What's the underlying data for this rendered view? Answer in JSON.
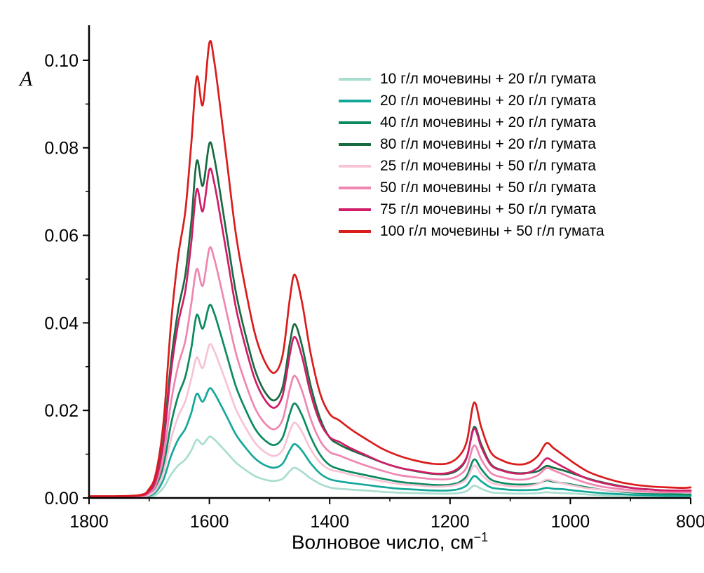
{
  "chart_data": {
    "type": "line",
    "title": "",
    "ylabel": "A",
    "xlabel": "Волновое число, см⁻¹",
    "xlabel_base": "Волновое число, см",
    "xlabel_sup": "−1",
    "x_axis_reversed": true,
    "xlim": [
      1800,
      800
    ],
    "ylim": [
      0,
      0.108
    ],
    "x_ticks": [
      1800,
      1600,
      1400,
      1200,
      1000,
      800
    ],
    "x_minor_ticks": [
      1700,
      1500,
      1300,
      1100,
      900
    ],
    "y_ticks": [
      0.0,
      0.02,
      0.04,
      0.06,
      0.08,
      0.1
    ],
    "y_minor_ticks": [
      0.01,
      0.03,
      0.05,
      0.07,
      0.09
    ],
    "grid": false,
    "legend_position": "upper-right-inside",
    "axis_color": "#000000",
    "x": [
      1800,
      1720,
      1700,
      1688,
      1676,
      1664,
      1652,
      1640,
      1630,
      1621,
      1611,
      1600,
      1592,
      1582,
      1570,
      1556,
      1540,
      1524,
      1508,
      1492,
      1478,
      1466,
      1458,
      1446,
      1432,
      1416,
      1400,
      1384,
      1364,
      1340,
      1312,
      1284,
      1256,
      1228,
      1204,
      1186,
      1172,
      1160,
      1148,
      1132,
      1112,
      1092,
      1072,
      1054,
      1040,
      1028,
      1012,
      994,
      972,
      948,
      920,
      892,
      864,
      836,
      812,
      800
    ],
    "series": [
      {
        "label": "10 г/л мочевины + 20 г/л гумата",
        "color": "#a9ddd0",
        "values": [
          0.0001,
          0.0001,
          0.0003,
          0.0008,
          0.0024,
          0.0053,
          0.0074,
          0.0088,
          0.0109,
          0.0133,
          0.0123,
          0.014,
          0.0134,
          0.012,
          0.0102,
          0.0081,
          0.0064,
          0.005,
          0.0042,
          0.0039,
          0.0044,
          0.0062,
          0.0069,
          0.006,
          0.0045,
          0.0032,
          0.0024,
          0.0021,
          0.0019,
          0.0017,
          0.0014,
          0.0012,
          0.0011,
          0.001,
          0.001,
          0.0011,
          0.0016,
          0.0028,
          0.0021,
          0.0013,
          0.0011,
          0.001,
          0.001,
          0.0011,
          0.0013,
          0.0012,
          0.0011,
          0.001,
          0.0008,
          0.0006,
          0.0005,
          0.0004,
          0.0003,
          0.0003,
          0.0003,
          0.0003
        ]
      },
      {
        "label": "20 г/л мочевины + 20 г/л гумата",
        "color": "#14a89a",
        "values": [
          0.0001,
          0.0002,
          0.0005,
          0.0015,
          0.0043,
          0.0095,
          0.0133,
          0.0158,
          0.0195,
          0.0238,
          0.022,
          0.025,
          0.024,
          0.0215,
          0.0183,
          0.0145,
          0.0115,
          0.009,
          0.0075,
          0.0069,
          0.0079,
          0.011,
          0.0123,
          0.0108,
          0.008,
          0.0056,
          0.0043,
          0.0038,
          0.0034,
          0.003,
          0.0025,
          0.0021,
          0.0019,
          0.0017,
          0.0017,
          0.002,
          0.0029,
          0.005,
          0.0038,
          0.0024,
          0.002,
          0.0018,
          0.0018,
          0.0019,
          0.0023,
          0.0021,
          0.002,
          0.0017,
          0.0014,
          0.0011,
          0.0009,
          0.0007,
          0.0006,
          0.0005,
          0.0005,
          0.0005
        ]
      },
      {
        "label": "40 г/л мочевины + 20 г/л гумата",
        "color": "#0b8a60",
        "values": [
          0.0002,
          0.0003,
          0.0009,
          0.0026,
          0.0075,
          0.0167,
          0.0233,
          0.0277,
          0.0343,
          0.0418,
          0.0387,
          0.044,
          0.0422,
          0.0378,
          0.0321,
          0.0255,
          0.0202,
          0.0158,
          0.0132,
          0.0121,
          0.0139,
          0.0194,
          0.0216,
          0.0189,
          0.0141,
          0.0099,
          0.0075,
          0.0066,
          0.0059,
          0.0052,
          0.0044,
          0.0037,
          0.0033,
          0.003,
          0.003,
          0.0035,
          0.0051,
          0.0088,
          0.0066,
          0.0042,
          0.0034,
          0.0031,
          0.0031,
          0.0033,
          0.004,
          0.0037,
          0.0034,
          0.003,
          0.0024,
          0.0019,
          0.0015,
          0.0012,
          0.001,
          0.0009,
          0.0008,
          0.0008
        ]
      },
      {
        "label": "80 г/л мочевины + 20 г/л гумата",
        "color": "#186b40",
        "values": [
          0.0003,
          0.0005,
          0.0016,
          0.0049,
          0.0138,
          0.0308,
          0.0429,
          0.051,
          0.0632,
          0.077,
          0.0713,
          0.081,
          0.0778,
          0.0697,
          0.0591,
          0.047,
          0.0373,
          0.0292,
          0.0243,
          0.0223,
          0.0255,
          0.0356,
          0.0397,
          0.0348,
          0.0259,
          0.0182,
          0.0138,
          0.0122,
          0.0109,
          0.0096,
          0.0081,
          0.0069,
          0.0061,
          0.0055,
          0.0055,
          0.0065,
          0.0093,
          0.0162,
          0.0122,
          0.0077,
          0.0063,
          0.0057,
          0.0057,
          0.0061,
          0.0073,
          0.0069,
          0.0063,
          0.0055,
          0.0045,
          0.0036,
          0.0028,
          0.0022,
          0.0019,
          0.0016,
          0.0015,
          0.0015
        ]
      },
      {
        "label": "25 г/л мочевины + 50 г/л гумата",
        "color": "#f7c3d6",
        "values": [
          0.0001,
          0.0002,
          0.0007,
          0.0021,
          0.006,
          0.0133,
          0.0186,
          0.0221,
          0.0273,
          0.0321,
          0.0297,
          0.035,
          0.0336,
          0.0301,
          0.0256,
          0.0203,
          0.0161,
          0.0126,
          0.0105,
          0.0096,
          0.011,
          0.0154,
          0.0172,
          0.0151,
          0.0112,
          0.0081,
          0.0065,
          0.006,
          0.0053,
          0.0046,
          0.0038,
          0.0032,
          0.0029,
          0.0026,
          0.0027,
          0.0032,
          0.0044,
          0.0074,
          0.0054,
          0.0035,
          0.0029,
          0.0026,
          0.0027,
          0.0032,
          0.0042,
          0.0039,
          0.0033,
          0.0028,
          0.0022,
          0.0019,
          0.0016,
          0.0014,
          0.0013,
          0.0013,
          0.0014,
          0.0015
        ]
      },
      {
        "label": "50 г/л мочевины + 50 г/л гумата",
        "color": "#ef86b2",
        "values": [
          0.0002,
          0.0003,
          0.0011,
          0.0034,
          0.0097,
          0.0217,
          0.0302,
          0.0359,
          0.0445,
          0.0523,
          0.0485,
          0.057,
          0.0547,
          0.049,
          0.0416,
          0.0331,
          0.0262,
          0.0205,
          0.0171,
          0.0157,
          0.018,
          0.0251,
          0.0279,
          0.0245,
          0.0182,
          0.0131,
          0.0105,
          0.0097,
          0.0086,
          0.0074,
          0.0062,
          0.0052,
          0.0047,
          0.0043,
          0.0043,
          0.0051,
          0.0071,
          0.012,
          0.0088,
          0.0057,
          0.0047,
          0.0042,
          0.0043,
          0.0052,
          0.0068,
          0.0063,
          0.0054,
          0.0044,
          0.0034,
          0.0026,
          0.0021,
          0.0017,
          0.0014,
          0.0013,
          0.0013,
          0.0013
        ]
      },
      {
        "label": "75 г/л мочевины + 50 г/л гумата",
        "color": "#d01d68",
        "values": [
          0.0003,
          0.0005,
          0.0015,
          0.0045,
          0.0128,
          0.0285,
          0.0398,
          0.0473,
          0.0585,
          0.0705,
          0.0655,
          0.075,
          0.072,
          0.0645,
          0.0548,
          0.0435,
          0.0345,
          0.027,
          0.0225,
          0.0206,
          0.0236,
          0.033,
          0.0368,
          0.0323,
          0.024,
          0.0173,
          0.0139,
          0.0128,
          0.0113,
          0.0098,
          0.0081,
          0.0069,
          0.0062,
          0.0056,
          0.0057,
          0.0068,
          0.0094,
          0.0158,
          0.0116,
          0.0075,
          0.0062,
          0.0056,
          0.0057,
          0.0069,
          0.009,
          0.0083,
          0.0071,
          0.0058,
          0.0044,
          0.0035,
          0.0027,
          0.0022,
          0.0019,
          0.0017,
          0.0017,
          0.0017
        ]
      },
      {
        "label": "100 г/л мочевины + 50 г/л гумата",
        "color": "#da1c1c",
        "values": [
          0.0004,
          0.0006,
          0.0021,
          0.0062,
          0.0177,
          0.0395,
          0.0551,
          0.0655,
          0.0811,
          0.0962,
          0.0898,
          0.104,
          0.0998,
          0.0894,
          0.0759,
          0.0603,
          0.0478,
          0.0374,
          0.0312,
          0.0286,
          0.0328,
          0.0458,
          0.051,
          0.0447,
          0.0333,
          0.0239,
          0.0192,
          0.0177,
          0.0156,
          0.0135,
          0.0112,
          0.0096,
          0.0085,
          0.0078,
          0.0079,
          0.0094,
          0.013,
          0.0218,
          0.0161,
          0.0104,
          0.0085,
          0.0077,
          0.0079,
          0.0096,
          0.0125,
          0.0114,
          0.0098,
          0.008,
          0.0061,
          0.0048,
          0.0037,
          0.003,
          0.0026,
          0.0024,
          0.0023,
          0.0024
        ]
      }
    ]
  }
}
